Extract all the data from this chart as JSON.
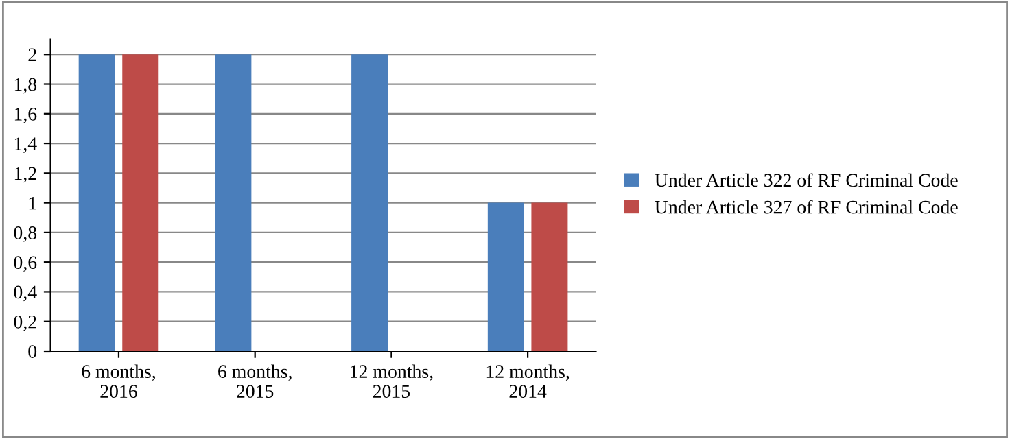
{
  "chart_data": {
    "type": "bar",
    "categories": [
      "6 months,\n2016",
      "6 months,\n2015",
      "12 months,\n2015",
      "12 months,\n2014"
    ],
    "series": [
      {
        "name": "Under Article 322 of RF Criminal Code",
        "color": "#4a7ebb",
        "values": [
          2,
          2,
          2,
          1
        ]
      },
      {
        "name": "Under Article 327 of RF Criminal Code",
        "color": "#be4b48",
        "values": [
          2,
          0,
          0,
          1
        ]
      }
    ],
    "ylim": [
      0,
      2.1
    ],
    "yticks": [
      0,
      {
        "value": 0.2,
        "label": "0,2"
      },
      {
        "value": 0.4,
        "label": "0,4"
      },
      {
        "value": 0.6,
        "label": "0,6"
      },
      {
        "value": 0.8,
        "label": "0,8"
      },
      1,
      {
        "value": 1.2,
        "label": "1,2"
      },
      {
        "value": 1.4,
        "label": "1,4"
      },
      {
        "value": 1.6,
        "label": "1,6"
      },
      {
        "value": 1.8,
        "label": "1,8"
      },
      2
    ],
    "grid": "y",
    "legend": "right"
  }
}
